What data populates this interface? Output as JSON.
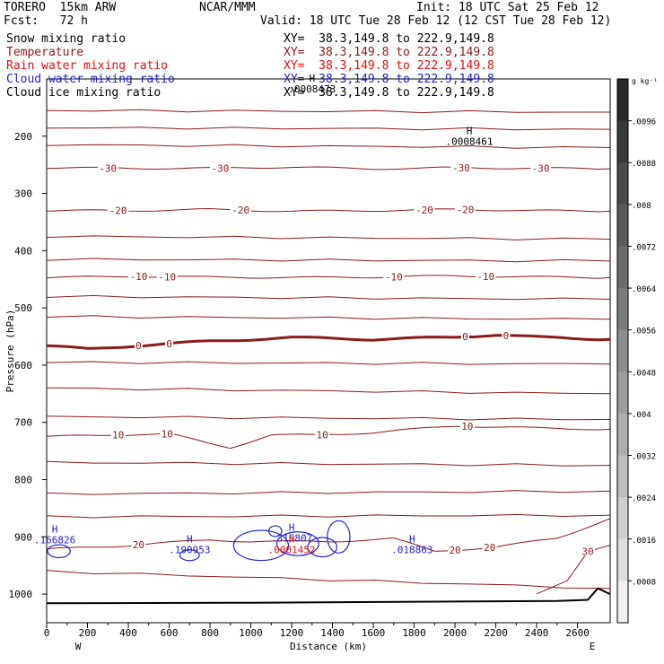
{
  "header": {
    "model": "TORERO  15km ARW",
    "center": "NCAR/MMM",
    "init": "Init: 18 UTC Sat 25 Feb 12",
    "fcst": "Fcst:   72 h",
    "valid": "Valid: 18 UTC Tue 28 Feb 12 (12 CST Tue 28 Feb 12)"
  },
  "fields": [
    {
      "name": "Snow mixing ratio",
      "xy": "XY=  38.3,149.8 to 222.9,149.8",
      "color": "#000000"
    },
    {
      "name": "Temperature",
      "xy": "XY=  38.3,149.8 to 222.9,149.8",
      "color": "#8b1a1a"
    },
    {
      "name": "Rain water mixing ratio",
      "xy": "XY=  38.3,149.8 to 222.9,149.8",
      "color": "#dd1111"
    },
    {
      "name": "Cloud water mixing ratio",
      "xy": "XY=  38.3,149.8 to 222.9,149.8",
      "color": "#2222cc"
    },
    {
      "name": "Cloud ice mixing ratio",
      "xy": "XY=  38.3,149.8 to 222.9,149.8",
      "color": "#000000"
    }
  ],
  "colors": {
    "temperature": "#8b1a1a",
    "cloud_water": "#2222cc",
    "rain_water": "#dd1111",
    "terrain": "#000000"
  },
  "chart_data": {
    "type": "line",
    "xlabel": "Distance (km)",
    "ylabel": "Pressure (hPa)",
    "xlim": [
      0,
      2760
    ],
    "ylim": [
      1050,
      100
    ],
    "x_ticks": [
      0,
      100,
      200,
      300,
      400,
      500,
      600,
      700,
      800,
      900,
      1000,
      1100,
      1200,
      1300,
      1400,
      1500,
      1600,
      1700,
      1800,
      1900,
      2000,
      2100,
      2200,
      2300,
      2400,
      2500,
      2600
    ],
    "x_tick_labels": [
      "0",
      "200",
      "400",
      "600",
      "800",
      "1000",
      "1200",
      "1400",
      "1600",
      "1800",
      "2000",
      "2200",
      "2400",
      "2600"
    ],
    "y_ticks": [
      200,
      300,
      400,
      500,
      600,
      700,
      800,
      900,
      1000
    ],
    "y_tick_labels": [
      "200",
      "300",
      "400",
      "500",
      "600",
      "700",
      "800",
      "900",
      "1000"
    ],
    "endpoints": {
      "left": "W",
      "right": "E"
    },
    "colorbar": {
      "unit": "g kg⁻¹",
      "labels": [
        ".0096",
        ".0088",
        ".008",
        ".0072",
        ".0064",
        ".0056",
        ".0048",
        ".004",
        ".0032",
        ".0024",
        ".0016",
        ".0008"
      ],
      "range": [
        0,
        0.01
      ]
    },
    "temperature_isotherms": [
      {
        "label": "-30",
        "points": [
          [
            0,
            255
          ],
          [
            400,
            256
          ],
          [
            800,
            256
          ],
          [
            1200,
            254
          ],
          [
            1600,
            257
          ],
          [
            2000,
            255
          ],
          [
            2400,
            256
          ],
          [
            2760,
            257
          ]
        ],
        "label_x": [
          300,
          850,
          2030,
          2420
        ]
      },
      {
        "label": "-20",
        "points": [
          [
            0,
            330
          ],
          [
            400,
            330
          ],
          [
            800,
            328
          ],
          [
            1200,
            331
          ],
          [
            1600,
            330
          ],
          [
            2000,
            328
          ],
          [
            2400,
            330
          ],
          [
            2760,
            331
          ]
        ],
        "label_x": [
          350,
          950,
          1850,
          2050
        ]
      },
      {
        "label": "-10",
        "points": [
          [
            0,
            447
          ],
          [
            400,
            445
          ],
          [
            800,
            446
          ],
          [
            1200,
            447
          ],
          [
            1600,
            446
          ],
          [
            2000,
            444
          ],
          [
            2400,
            446
          ],
          [
            2760,
            447
          ]
        ],
        "label_x": [
          450,
          590,
          1700,
          2150
        ]
      },
      {
        "label": "0",
        "points": [
          [
            0,
            566
          ],
          [
            200,
            572
          ],
          [
            400,
            567
          ],
          [
            800,
            558
          ],
          [
            1200,
            552
          ],
          [
            1400,
            553
          ],
          [
            1600,
            555
          ],
          [
            2000,
            551
          ],
          [
            2200,
            547
          ],
          [
            2400,
            551
          ],
          [
            2760,
            555
          ]
        ],
        "label_x": [
          450,
          600,
          2050,
          2250
        ]
      },
      {
        "label": "10",
        "points": [
          [
            0,
            725
          ],
          [
            300,
            722
          ],
          [
            600,
            720
          ],
          [
            800,
            737
          ],
          [
            900,
            744
          ],
          [
            1100,
            722
          ],
          [
            1300,
            722
          ],
          [
            1600,
            718
          ],
          [
            2000,
            706
          ],
          [
            2400,
            710
          ],
          [
            2760,
            712
          ]
        ],
        "label_x": [
          350,
          590,
          1350,
          2060
        ]
      },
      {
        "label": "20",
        "points": [
          [
            0,
            922
          ],
          [
            200,
            918
          ],
          [
            400,
            915
          ],
          [
            600,
            910
          ],
          [
            800,
            905
          ],
          [
            1000,
            908
          ],
          [
            1400,
            908
          ],
          [
            1700,
            903
          ],
          [
            1900,
            925
          ],
          [
            2200,
            918
          ],
          [
            2500,
            902
          ],
          [
            2760,
            868
          ]
        ],
        "label_x": [
          450,
          2000,
          2170
        ]
      },
      {
        "label": "30",
        "points": [
          [
            2400,
            1000
          ],
          [
            2550,
            975
          ],
          [
            2650,
            925
          ],
          [
            2760,
            915
          ]
        ],
        "label_x": [
          2650
        ]
      }
    ],
    "temperature_unlabeled_isotherms": [
      [
        155,
        158
      ],
      [
        185,
        188
      ],
      [
        215,
        220
      ],
      [
        375,
        380
      ],
      [
        415,
        418
      ],
      [
        480,
        485
      ],
      [
        515,
        520
      ],
      [
        595,
        598
      ],
      [
        640,
        650
      ],
      [
        690,
        695
      ],
      [
        770,
        775
      ],
      [
        825,
        820
      ],
      [
        865,
        862
      ],
      [
        960,
        990
      ]
    ],
    "highs": [
      {
        "field": "Snow mixing ratio",
        "x": 2070,
        "p": 212,
        "value": ".0008461"
      },
      {
        "field": "Cloud ice mixing ratio",
        "x": 1300,
        "p": 120,
        "value": ".0008473"
      },
      {
        "field": "Cloud water mixing ratio",
        "x": 40,
        "p": 908,
        "value": ".166826"
      },
      {
        "field": "Cloud water mixing ratio",
        "x": 700,
        "p": 925,
        "value": ".190953"
      },
      {
        "field": "Cloud water mixing ratio",
        "x": 1200,
        "p": 905,
        "value": ".315807"
      },
      {
        "field": "Cloud water mixing ratio",
        "x": 1790,
        "p": 925,
        "value": ".018863"
      },
      {
        "field": "Rain water mixing ratio",
        "x": 1200,
        "p": 925,
        "value": ".0001452"
      }
    ],
    "terrain": [
      [
        0,
        1016
      ],
      [
        1000,
        1015
      ],
      [
        2000,
        1013
      ],
      [
        2500,
        1012
      ],
      [
        2650,
        1010
      ],
      [
        2700,
        990
      ],
      [
        2760,
        1000
      ]
    ]
  }
}
